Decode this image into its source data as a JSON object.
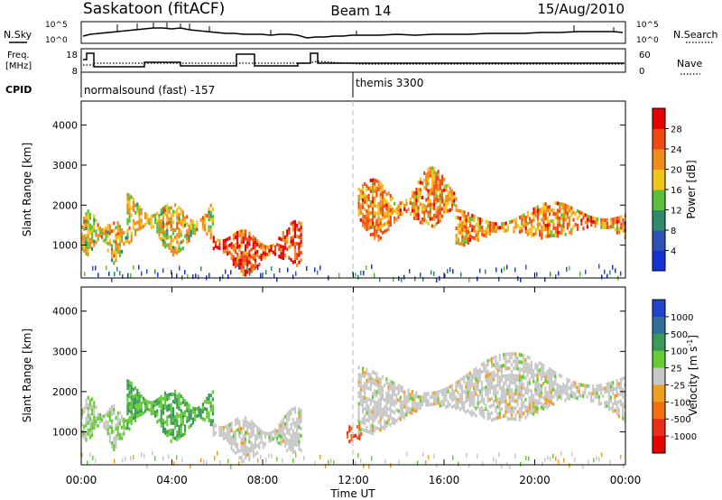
{
  "header": {
    "station": "Saskatoon (fitACF)",
    "beam": "Beam 14",
    "date": "15/Aug/2010"
  },
  "noise_panel": {
    "left_label": "N.Sky",
    "right_label": "N.Search",
    "ticks": [
      "10^5",
      "10^0"
    ]
  },
  "freq_panel": {
    "left_label_1": "Freq.",
    "left_label_2": "[MHz]",
    "left_ticks": [
      "18",
      "8"
    ],
    "right_label": "Nave",
    "right_ticks": [
      "60",
      "0"
    ]
  },
  "cpid": {
    "label": "CPID",
    "modes": [
      {
        "name": "normalsound (fast) -157",
        "start_hour": 0
      },
      {
        "name": "themis 3300",
        "start_hour": 12
      }
    ]
  },
  "chart_data": [
    {
      "type": "heatmap",
      "name": "power",
      "ylabel": "Slant Range [km]",
      "xlabel": "Time UT",
      "ylim": [
        180,
        4600
      ],
      "xlim": [
        0,
        24
      ],
      "y_ticks": [
        "1000",
        "2000",
        "3000",
        "4000"
      ],
      "x_ticks": [
        "00:00",
        "04:00",
        "08:00",
        "12:00",
        "16:00",
        "20:00",
        "00:00"
      ],
      "colorbar": {
        "label": "Power [dB]",
        "ticks": [
          "4",
          "8",
          "12",
          "16",
          "20",
          "24",
          "28"
        ],
        "colors": [
          "#1432d4",
          "#3050b8",
          "#2f8a6a",
          "#5cbf3a",
          "#f0c419",
          "#f28a1e",
          "#ee4a12",
          "#e60000"
        ]
      },
      "echo_regions": [
        {
          "t0": 0.0,
          "t1": 2.0,
          "r0": 700,
          "r1": 1800,
          "level": 20
        },
        {
          "t0": 2.0,
          "t1": 5.8,
          "r0": 900,
          "r1": 2200,
          "level": 20
        },
        {
          "t0": 5.8,
          "t1": 9.7,
          "r0": 400,
          "r1": 1500,
          "level": 28
        },
        {
          "t0": 12.2,
          "t1": 16.5,
          "r0": 1300,
          "r1": 2800,
          "level": 24
        },
        {
          "t0": 16.5,
          "t1": 24.0,
          "r0": 1100,
          "r1": 2000,
          "level": 24
        }
      ]
    },
    {
      "type": "heatmap",
      "name": "velocity",
      "ylabel": "Slant Range [km]",
      "xlabel": "Time UT",
      "ylim": [
        180,
        4600
      ],
      "xlim": [
        0,
        24
      ],
      "y_ticks": [
        "1000",
        "2000",
        "3000",
        "4000"
      ],
      "x_ticks": [
        "00:00",
        "04:00",
        "08:00",
        "12:00",
        "16:00",
        "20:00",
        "00:00"
      ],
      "colorbar": {
        "label": "Velocity [m s^-1]",
        "ticks": [
          "1000",
          "500",
          "100",
          "25",
          "-25",
          "-100",
          "-500",
          "-1000"
        ],
        "colors": [
          "#2244cc",
          "#2f6f9a",
          "#3a9a58",
          "#66cc33",
          "#c8c8c8",
          "#f0a020",
          "#f07010",
          "#ee2a1a",
          "#e60000"
        ]
      },
      "echo_regions": [
        {
          "t0": 0.0,
          "t1": 2.0,
          "r0": 700,
          "r1": 1800,
          "level": 25
        },
        {
          "t0": 2.0,
          "t1": 5.8,
          "r0": 900,
          "r1": 2200,
          "level": 100
        },
        {
          "t0": 5.8,
          "t1": 9.7,
          "r0": 400,
          "r1": 1500,
          "level": 0
        },
        {
          "t0": 11.7,
          "t1": 12.4,
          "r0": 800,
          "r1": 1200,
          "level": -500
        },
        {
          "t0": 12.2,
          "t1": 24.0,
          "r0": 1100,
          "r1": 2800,
          "level": 0
        }
      ]
    }
  ]
}
